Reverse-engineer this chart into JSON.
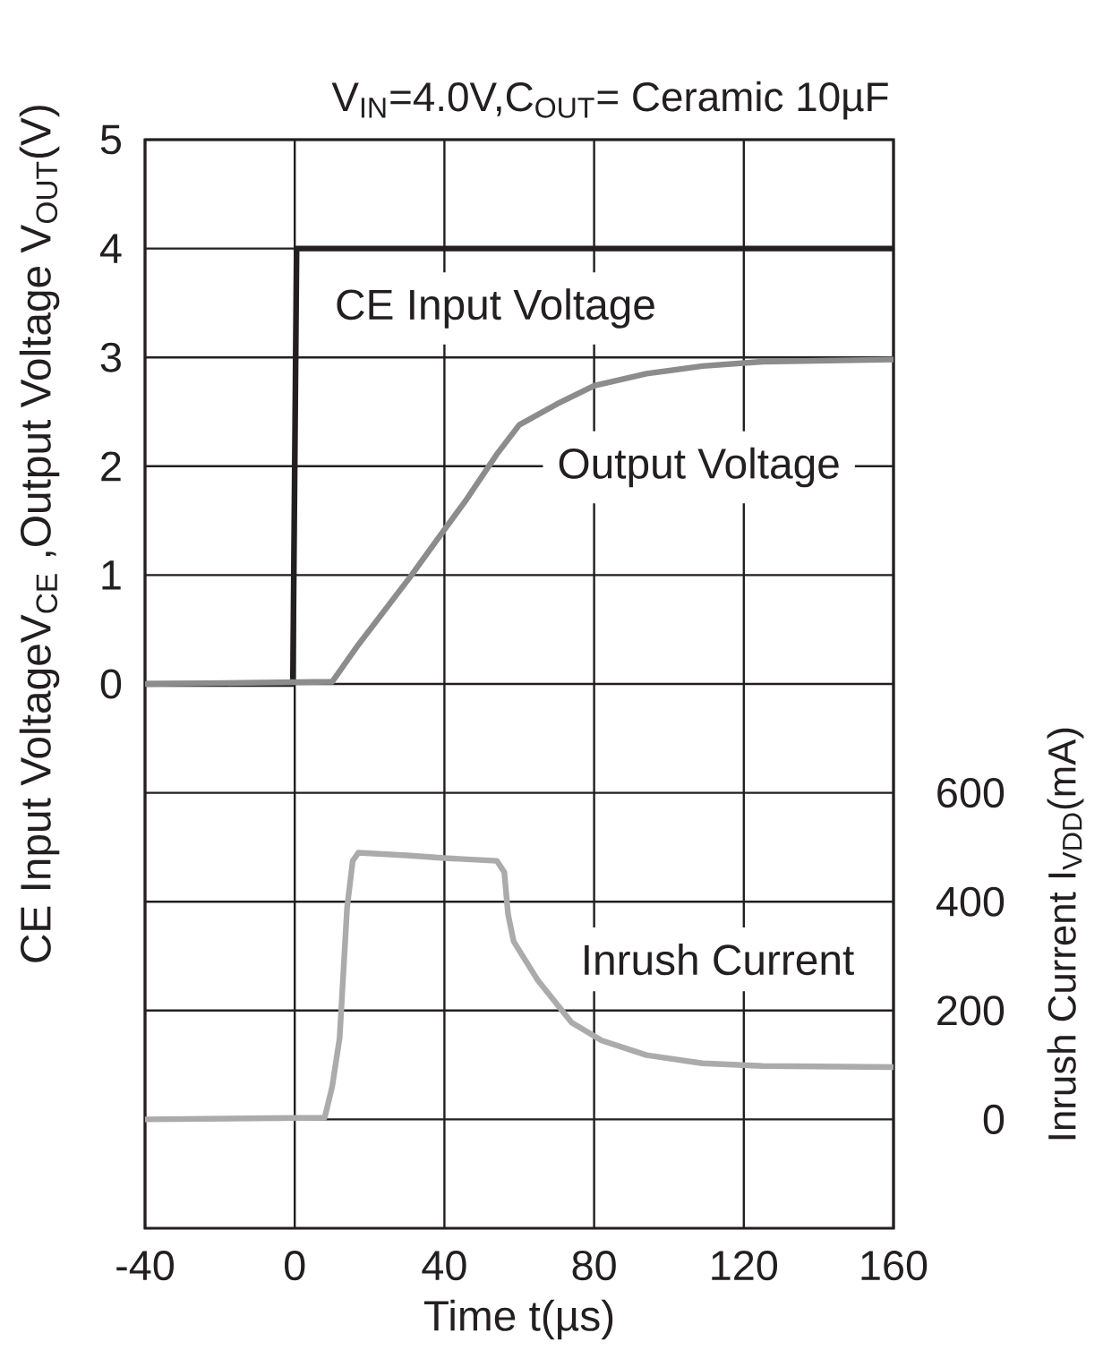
{
  "chart_data": {
    "type": "line",
    "subtitle": "V$_{IN}$=4.0V,C$_{OUT}$= Ceramic 10µF",
    "xlabel": "Time t(µs)",
    "ylabel": "CE Input VoltageV$_{CE}$ ,Output Voltage V$_{OUT}$(V)",
    "y2label": "Inrush Current I$_{VDD}$(mA)",
    "xlim": [
      -40,
      160
    ],
    "xticks": [
      -40,
      0,
      40,
      80,
      120,
      160
    ],
    "ylim": [
      -5,
      5
    ],
    "yticks": [
      {
        "value": -4,
        "label": null
      },
      {
        "value": -3,
        "label": null
      },
      {
        "value": -2,
        "label": null
      },
      {
        "value": -1,
        "label": null
      },
      0,
      1,
      2,
      3,
      4,
      5
    ],
    "y2lim": [
      -200,
      1800
    ],
    "y2ticks": [
      0,
      200,
      400,
      600
    ],
    "grid": true,
    "series": [
      {
        "name": "CE Input Voltage",
        "color": "#231f20",
        "x": [
          -40,
          -0.5,
          0.5,
          160
        ],
        "values": [
          0,
          0,
          4,
          4
        ]
      },
      {
        "name": "Output Voltage",
        "color": "#8c8c8c",
        "x": [
          -40,
          10,
          17,
          31,
          39,
          46,
          54,
          60,
          70,
          80,
          94,
          109,
          125,
          160
        ],
        "values": [
          0,
          0.02,
          0.36,
          0.99,
          1.37,
          1.7,
          2.11,
          2.38,
          2.57,
          2.74,
          2.85,
          2.92,
          2.96,
          2.98
        ]
      },
      {
        "name": "Inrush Current",
        "color": "#ababab",
        "axis": "y2",
        "x": [
          -40,
          8,
          10,
          12,
          14,
          15.5,
          17,
          30,
          40,
          54,
          56,
          57,
          58.5,
          65,
          74,
          82,
          94,
          109,
          125,
          160
        ],
        "values": [
          0,
          3,
          60,
          150,
          390,
          475,
          490,
          485,
          480,
          475,
          454,
          377,
          327,
          255,
          178,
          145,
          118,
          103,
          98,
          96
        ]
      }
    ]
  }
}
